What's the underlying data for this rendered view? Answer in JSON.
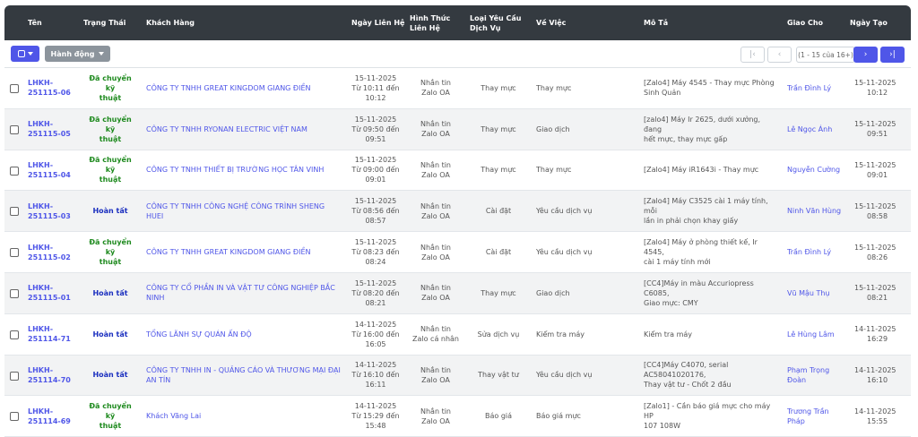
{
  "columns": {
    "ten": "Tên",
    "trang_thai": "Trạng Thái",
    "khach_hang": "Khách Hàng",
    "ngay_lien_he": "Ngày Liên Hệ",
    "hinh_thuc_1": "Hình Thức",
    "hinh_thuc_2": "Liên Hệ",
    "loai_yc_1": "Loại Yêu Cầu",
    "loai_yc_2": "Dịch Vụ",
    "ve_viec": "Về Việc",
    "mo_ta": "Mô Tả",
    "giao_cho": "Giao Cho",
    "ngay_tao": "Ngày Tạo"
  },
  "toolbar": {
    "action_label": "Hành động",
    "pagination_info": "(1 - 15 của 16+)",
    "first_icon": "first-page-icon",
    "prev_icon": "prev-page-icon",
    "next_icon": "next-page-icon",
    "last_icon": "last-page-icon"
  },
  "colors": {
    "header_bg": "#343a40",
    "accent": "#4f56e8",
    "status_transferred": "#1e8a1e",
    "status_done": "#1b2fbf"
  },
  "rows": [
    {
      "code_1": "LHKH-",
      "code_2": "251115-06",
      "status_1": "Đã chuyển kỹ",
      "status_2": "thuật",
      "status_type": "green",
      "customer_1": "CÔNG TY TNHH GREAT KINGDOM GIANG ĐIỀN",
      "customer_2": "",
      "date_1": "15-11-2025",
      "date_2": "Từ 10:11 đến",
      "date_3": "10:12",
      "channel_1": "Nhắn tin",
      "channel_2": "Zalo OA",
      "service": "Thay mực",
      "subject": "Thay mực",
      "desc_1": "[Zalo4] Máy 4545 - Thay mực Phòng",
      "desc_2": "Sinh Quản",
      "assignee_1": "Trần Đình Lý",
      "assignee_2": "",
      "created_1": "15-11-2025",
      "created_2": "10:12"
    },
    {
      "code_1": "LHKH-",
      "code_2": "251115-05",
      "status_1": "Đã chuyển kỹ",
      "status_2": "thuật",
      "status_type": "green",
      "customer_1": "CÔNG TY TNHH RYONAN ELECTRIC VIỆT NAM",
      "customer_2": "",
      "date_1": "15-11-2025",
      "date_2": "Từ 09:50 đến",
      "date_3": "09:51",
      "channel_1": "Nhắn tin",
      "channel_2": "Zalo OA",
      "service": "Thay mực",
      "subject": "Giao dịch",
      "desc_1": "[zalo4] Máy Ir 2625, dưới xưởng, đang",
      "desc_2": "hết mực, thay mực gấp",
      "assignee_1": "Lê Ngọc Ánh",
      "assignee_2": "",
      "created_1": "15-11-2025",
      "created_2": "09:51"
    },
    {
      "code_1": "LHKH-",
      "code_2": "251115-04",
      "status_1": "Đã chuyển kỹ",
      "status_2": "thuật",
      "status_type": "green",
      "customer_1": "CÔNG TY TNHH THIẾT BỊ TRƯỜNG HỌC TÂN VINH",
      "customer_2": "",
      "date_1": "15-11-2025",
      "date_2": "Từ 09:00 đến",
      "date_3": "09:01",
      "channel_1": "Nhắn tin",
      "channel_2": "Zalo OA",
      "service": "Thay mực",
      "subject": "Thay mực",
      "desc_1": "[Zalo4] Máy iR1643i - Thay mực",
      "desc_2": "",
      "assignee_1": "Nguyễn Cường",
      "assignee_2": "",
      "created_1": "15-11-2025",
      "created_2": "09:01"
    },
    {
      "code_1": "LHKH-",
      "code_2": "251115-03",
      "status_1": "Hoàn tất",
      "status_2": "",
      "status_type": "blue",
      "customer_1": "CÔNG TY TNHH CÔNG NGHỆ CÔNG TRÌNH SHENG HUEI",
      "customer_2": "",
      "date_1": "15-11-2025",
      "date_2": "Từ 08:56 đến",
      "date_3": "08:57",
      "channel_1": "Nhắn tin",
      "channel_2": "Zalo OA",
      "service": "Cài đặt",
      "subject": "Yêu cầu dịch vụ",
      "desc_1": "[Zalo4] Máy C3525 cài 1 máy tính, mỗi",
      "desc_2": "lần in phải chọn khay giấy",
      "assignee_1": "Ninh Văn Hùng",
      "assignee_2": "",
      "created_1": "15-11-2025",
      "created_2": "08:58"
    },
    {
      "code_1": "LHKH-",
      "code_2": "251115-02",
      "status_1": "Đã chuyển kỹ",
      "status_2": "thuật",
      "status_type": "green",
      "customer_1": "CÔNG TY TNHH GREAT KINGDOM GIANG ĐIỀN",
      "customer_2": "",
      "date_1": "15-11-2025",
      "date_2": "Từ 08:23 đến",
      "date_3": "08:24",
      "channel_1": "Nhắn tin",
      "channel_2": "Zalo OA",
      "service": "Cài đặt",
      "subject": "Yêu cầu dịch vụ",
      "desc_1": "[Zalo4] Máy ở phòng thiết kế, Ir 4545,",
      "desc_2": "cài 1 máy tính mới",
      "assignee_1": "Trần Đình Lý",
      "assignee_2": "",
      "created_1": "15-11-2025",
      "created_2": "08:26"
    },
    {
      "code_1": "LHKH-",
      "code_2": "251115-01",
      "status_1": "Hoàn tất",
      "status_2": "",
      "status_type": "blue",
      "customer_1": "CÔNG TY CỔ PHẦN IN VÀ VẬT TƯ CÔNG NGHIỆP BẮC",
      "customer_2": "NINH",
      "date_1": "15-11-2025",
      "date_2": "Từ 08:20 đến",
      "date_3": "08:21",
      "channel_1": "Nhắn tin",
      "channel_2": "Zalo OA",
      "service": "Thay mực",
      "subject": "Giao dịch",
      "desc_1": "[CC4]Máy in màu Accuriopress C6085,",
      "desc_2": "Giao mực: CMY",
      "assignee_1": "Vũ Mậu Thụ",
      "assignee_2": "",
      "created_1": "15-11-2025",
      "created_2": "08:21"
    },
    {
      "code_1": "LHKH-",
      "code_2": "251114-71",
      "status_1": "Hoàn tất",
      "status_2": "",
      "status_type": "blue",
      "customer_1": "TỔNG LÃNH SỰ QUÁN ẤN ĐỘ",
      "customer_2": "",
      "date_1": "14-11-2025",
      "date_2": "Từ 16:00 đến",
      "date_3": "16:05",
      "channel_1": "Nhắn tin",
      "channel_2": "Zalo cá nhân",
      "service": "Sửa dịch vụ",
      "subject": "Kiểm tra máy",
      "desc_1": "Kiểm tra máy",
      "desc_2": "",
      "assignee_1": "Lê Hùng Lâm",
      "assignee_2": "",
      "created_1": "14-11-2025",
      "created_2": "16:29"
    },
    {
      "code_1": "LHKH-",
      "code_2": "251114-70",
      "status_1": "Hoàn tất",
      "status_2": "",
      "status_type": "blue",
      "customer_1": "CÔNG TY TNHH IN - QUẢNG CÁO VÀ THƯƠNG MẠI ĐẠI",
      "customer_2": "AN TÍN",
      "date_1": "14-11-2025",
      "date_2": "Từ 16:10 đến",
      "date_3": "16:11",
      "channel_1": "Nhắn tin",
      "channel_2": "Zalo OA",
      "service": "Thay vật tư",
      "subject": "Yêu cầu dịch vụ",
      "desc_1": "[CC4]Máy C4070, serial AC58041020176,",
      "desc_2": "Thay vật tư - Chốt 2 đầu",
      "assignee_1": "Phạm Trọng",
      "assignee_2": "Đoàn",
      "created_1": "14-11-2025",
      "created_2": "16:10"
    },
    {
      "code_1": "LHKH-",
      "code_2": "251114-69",
      "status_1": "Đã chuyển kỹ",
      "status_2": "thuật",
      "status_type": "green",
      "customer_1": "Khách Vãng Lai",
      "customer_2": "",
      "date_1": "14-11-2025",
      "date_2": "Từ 15:29 đến",
      "date_3": "15:48",
      "channel_1": "Nhắn tin",
      "channel_2": "Zalo OA",
      "service": "Báo giá",
      "subject": "Báo giá mực",
      "desc_1": "[Zalo1] - Cần báo giá mực cho máy HP",
      "desc_2": "107 108W",
      "assignee_1": "Trương Trần",
      "assignee_2": "Pháp",
      "created_1": "14-11-2025",
      "created_2": "15:55"
    }
  ]
}
